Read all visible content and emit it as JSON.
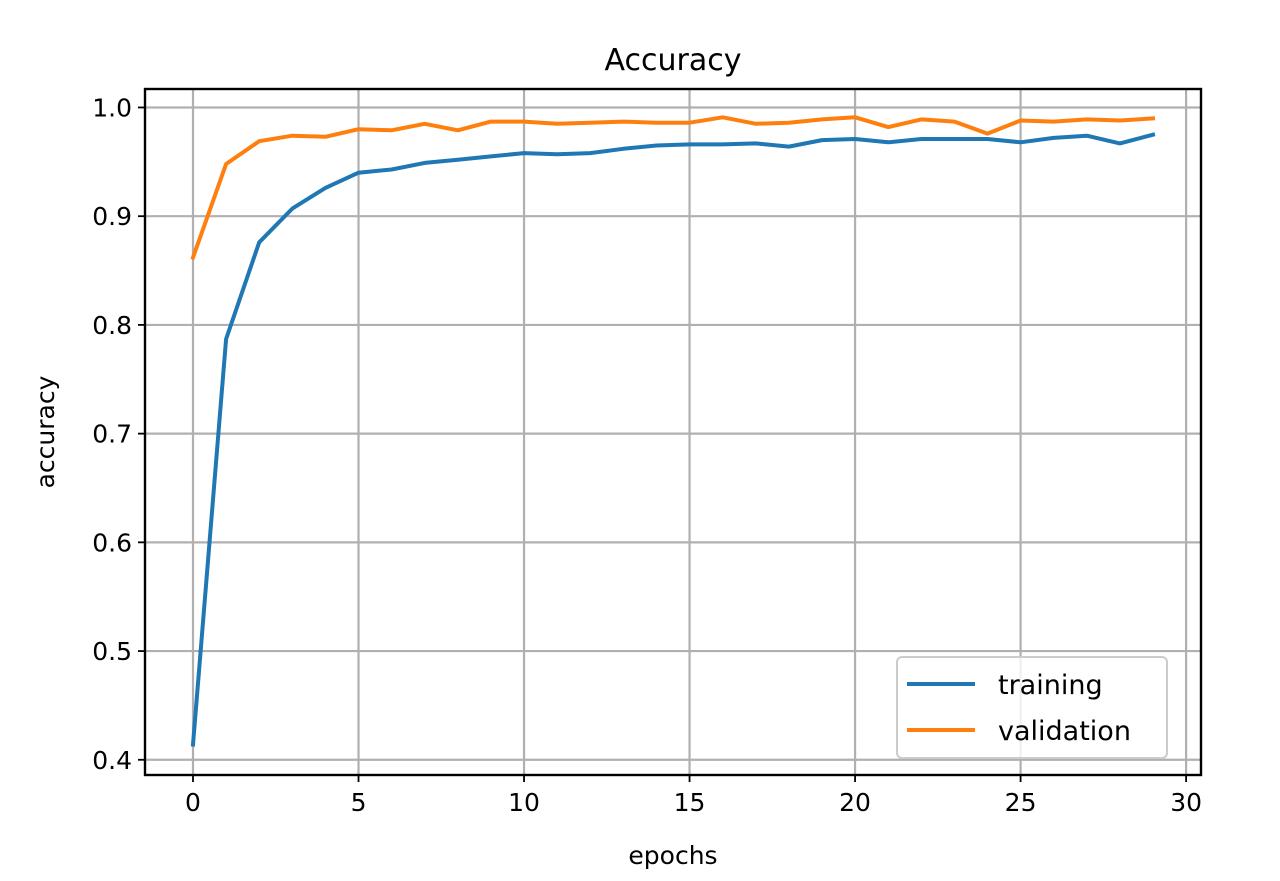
{
  "chart_data": {
    "type": "line",
    "title": "Accuracy",
    "xlabel": "epochs",
    "ylabel": "accuracy",
    "xlim": [
      -1.45,
      30.45
    ],
    "ylim": [
      0.386,
      1.017
    ],
    "xticks": [
      0,
      5,
      10,
      15,
      20,
      25,
      30
    ],
    "xtick_labels": [
      "0",
      "5",
      "10",
      "15",
      "20",
      "25",
      "30"
    ],
    "yticks": [
      0.4,
      0.5,
      0.6,
      0.7,
      0.8,
      0.9,
      1.0
    ],
    "ytick_labels": [
      "0.4",
      "0.5",
      "0.6",
      "0.7",
      "0.8",
      "0.9",
      "1.0"
    ],
    "grid": true,
    "legend_position": "lower right",
    "x": [
      0,
      1,
      2,
      3,
      4,
      5,
      6,
      7,
      8,
      9,
      10,
      11,
      12,
      13,
      14,
      15,
      16,
      17,
      18,
      19,
      20,
      21,
      22,
      23,
      24,
      25,
      26,
      27,
      28,
      29
    ],
    "series": [
      {
        "name": "training",
        "color": "#1f77b4",
        "values": [
          0.414,
          0.787,
          0.876,
          0.907,
          0.926,
          0.94,
          0.943,
          0.949,
          0.952,
          0.955,
          0.958,
          0.957,
          0.958,
          0.962,
          0.965,
          0.966,
          0.966,
          0.967,
          0.964,
          0.97,
          0.971,
          0.968,
          0.971,
          0.971,
          0.971,
          0.968,
          0.972,
          0.974,
          0.967,
          0.975
        ]
      },
      {
        "name": "validation",
        "color": "#ff7f0e",
        "values": [
          0.862,
          0.948,
          0.969,
          0.974,
          0.973,
          0.98,
          0.979,
          0.985,
          0.979,
          0.987,
          0.987,
          0.985,
          0.986,
          0.987,
          0.986,
          0.986,
          0.991,
          0.985,
          0.986,
          0.989,
          0.991,
          0.982,
          0.989,
          0.987,
          0.976,
          0.988,
          0.987,
          0.989,
          0.988,
          0.99
        ]
      }
    ]
  }
}
